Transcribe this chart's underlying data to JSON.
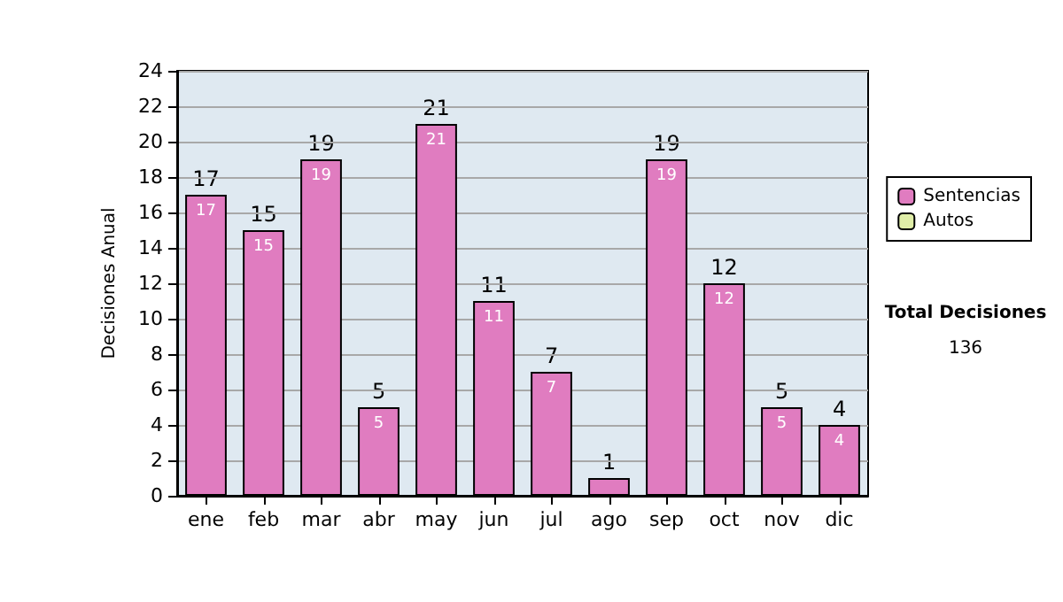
{
  "chart_data": {
    "type": "bar",
    "ylabel": "Decisiones Anual",
    "categories": [
      "ene",
      "feb",
      "mar",
      "abr",
      "may",
      "jun",
      "jul",
      "ago",
      "sep",
      "oct",
      "nov",
      "dic"
    ],
    "series": [
      {
        "name": "Sentencias",
        "color": "#e07cc0",
        "values": [
          17,
          15,
          19,
          5,
          21,
          11,
          7,
          1,
          19,
          12,
          5,
          4
        ],
        "value_labels": [
          "17",
          "15",
          "19",
          "5",
          "21",
          "11",
          "7",
          null,
          "19",
          "12",
          "5",
          "4"
        ]
      },
      {
        "name": "Autos",
        "color": "#e0eea8",
        "values": [
          null,
          null,
          null,
          null,
          null,
          null,
          null,
          null,
          null,
          null,
          null,
          null
        ]
      }
    ],
    "stacked": true,
    "totals": [
      "17",
      "15",
      "19",
      "5",
      "21",
      "11",
      "7",
      "1",
      "19",
      "12",
      "5",
      "4"
    ],
    "ylim": [
      0,
      24
    ],
    "yticks": [
      0,
      2,
      4,
      6,
      8,
      10,
      12,
      14,
      16,
      18,
      20,
      22,
      24
    ],
    "grid": "y",
    "legend": "right",
    "annotations": [
      "Total Decisiones",
      "136"
    ]
  }
}
